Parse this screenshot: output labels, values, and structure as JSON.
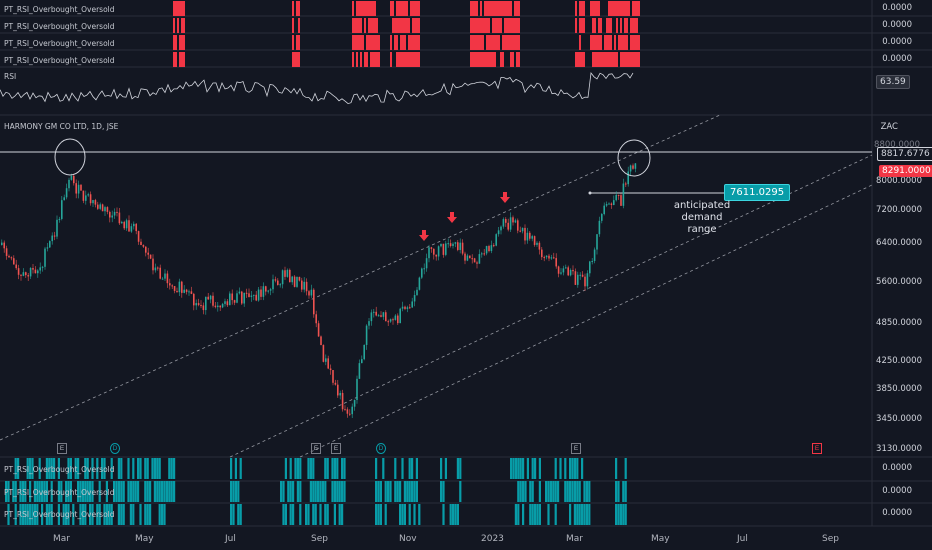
{
  "top_panes": [
    {
      "label": "PT_RSI_Overbought_Oversold",
      "value": "0.0000"
    },
    {
      "label": "PT_RSI_Overbought_Oversold",
      "value": "0.0000"
    },
    {
      "label": "PT_RSI_Overbought_Oversold",
      "value": "0.0000"
    },
    {
      "label": "PT_RSI_Overbought_Oversold",
      "value": "0.0000"
    }
  ],
  "rsi": {
    "label": "RSI",
    "value": "63.59"
  },
  "main": {
    "title": "HARMONY GM CO LTD, 1D, JSE",
    "currency": "ZAC",
    "price_scale": [
      "8800.0000",
      "8000.0000",
      "7200.0000",
      "6400.0000",
      "5600.0000",
      "4850.0000",
      "4250.0000",
      "3850.0000",
      "3450.0000",
      "3130.0000"
    ],
    "tag_high": "8817.6776",
    "tag_last": "8291.0000",
    "tag_demand": "7611.0295",
    "annotation": "anticipated\ndemand\nrange"
  },
  "events": [
    "E",
    "D",
    "E",
    "E",
    "D",
    "E",
    "E"
  ],
  "bottom_panes": [
    {
      "label": "PT_RSI_Overbought_Oversold",
      "value": "0.0000"
    },
    {
      "label": "PT_RSI_Overbought_Oversold",
      "value": "0.0000"
    },
    {
      "label": "PT_RSI_Overbought_Oversold",
      "value": "0.0000"
    }
  ],
  "months": [
    "Mar",
    "May",
    "Jul",
    "Sep",
    "Nov",
    "2023",
    "Mar",
    "May",
    "Jul",
    "Sep"
  ],
  "colors": {
    "bg": "#131722",
    "up": "#26a69a",
    "down": "#ef5350",
    "red_bar": "#f23645",
    "teal_bar": "#089da8",
    "demand_tag": "#089da8"
  }
}
